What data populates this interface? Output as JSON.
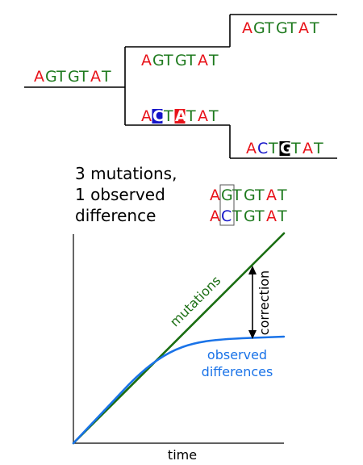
{
  "colors": {
    "A": "#e8141b",
    "G": "#1e7a1e",
    "T": "#1e7a1e",
    "C": "#1414c8",
    "mutations_line": "#1a6e12",
    "observed_curve": "#1a73e8",
    "tree_line": "#000000"
  },
  "tree": {
    "root": "AGTGTAT",
    "upper_child": "AGTGTAT",
    "upper_leaf": "AGTGTAT",
    "lower_child": "ACTATAT",
    "lower_leaf": "ACTGTAT",
    "lower_child_highlight_blue": "C",
    "lower_child_highlight_red": "A",
    "lower_leaf_highlight_black": "G"
  },
  "summary": {
    "line1": "3 mutations,",
    "line2": "1 observed",
    "line3": "difference"
  },
  "comparison": {
    "seq1": "AGTGTAT",
    "seq2": "ACTGTAT",
    "boxed_position": 2
  },
  "chart_data": {
    "type": "line",
    "xlabel": "time",
    "ylabel": "",
    "series": [
      {
        "name": "mutations",
        "shape": "linear"
      },
      {
        "name": "observed differences",
        "shape": "saturating"
      }
    ],
    "annotations": [
      "correction"
    ]
  }
}
